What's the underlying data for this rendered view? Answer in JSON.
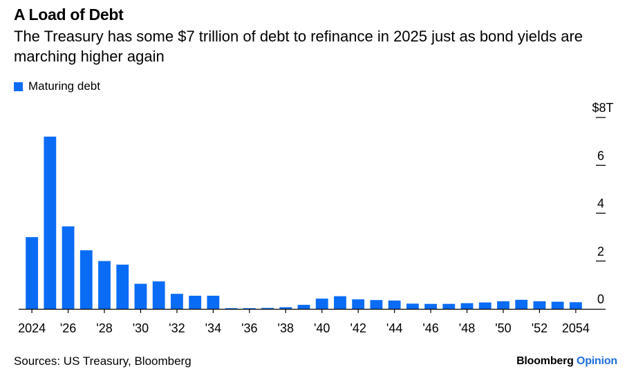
{
  "title": "A Load of Debt",
  "subtitle": "The Treasury has some $7 trillion of debt to refinance in 2025 just as bond yields are marching higher again",
  "legend_label": "Maturing debt",
  "source": "Sources: US Treasury, Bloomberg",
  "brand_primary": "Bloomberg",
  "brand_secondary": "Opinion",
  "colors": {
    "bar": "#0a6cf5",
    "axis": "#000000",
    "brand_accent": "#1e6de0"
  },
  "chart_data": {
    "type": "bar",
    "title": "A Load of Debt",
    "xlabel": "",
    "ylabel": "",
    "ylim": [
      0,
      8
    ],
    "y_ticks": [
      {
        "value": 0,
        "label": "0"
      },
      {
        "value": 2,
        "label": "2"
      },
      {
        "value": 4,
        "label": "4"
      },
      {
        "value": 6,
        "label": "6"
      },
      {
        "value": 8,
        "label": "$8T"
      }
    ],
    "categories": [
      "2024",
      "2025",
      "2026",
      "2027",
      "2028",
      "2029",
      "2030",
      "2031",
      "2032",
      "2033",
      "2034",
      "2035",
      "2036",
      "2037",
      "2038",
      "2039",
      "2040",
      "2041",
      "2042",
      "2043",
      "2044",
      "2045",
      "2046",
      "2047",
      "2048",
      "2049",
      "2050",
      "2051",
      "2052",
      "2053",
      "2054"
    ],
    "tick_labels": [
      "2024",
      "",
      "'26",
      "",
      "'28",
      "",
      "'30",
      "",
      "'32",
      "",
      "'34",
      "",
      "'36",
      "",
      "'38",
      "",
      "'40",
      "",
      "'42",
      "",
      "'44",
      "",
      "'46",
      "",
      "'48",
      "",
      "'50",
      "",
      "'52",
      "",
      "2054"
    ],
    "series": [
      {
        "name": "Maturing debt",
        "values": [
          3.0,
          7.2,
          3.45,
          2.45,
          2.0,
          1.85,
          1.05,
          1.15,
          0.63,
          0.55,
          0.55,
          0.03,
          0.03,
          0.04,
          0.07,
          0.17,
          0.43,
          0.53,
          0.4,
          0.37,
          0.35,
          0.22,
          0.21,
          0.21,
          0.24,
          0.27,
          0.32,
          0.38,
          0.32,
          0.3,
          0.28
        ]
      }
    ]
  }
}
